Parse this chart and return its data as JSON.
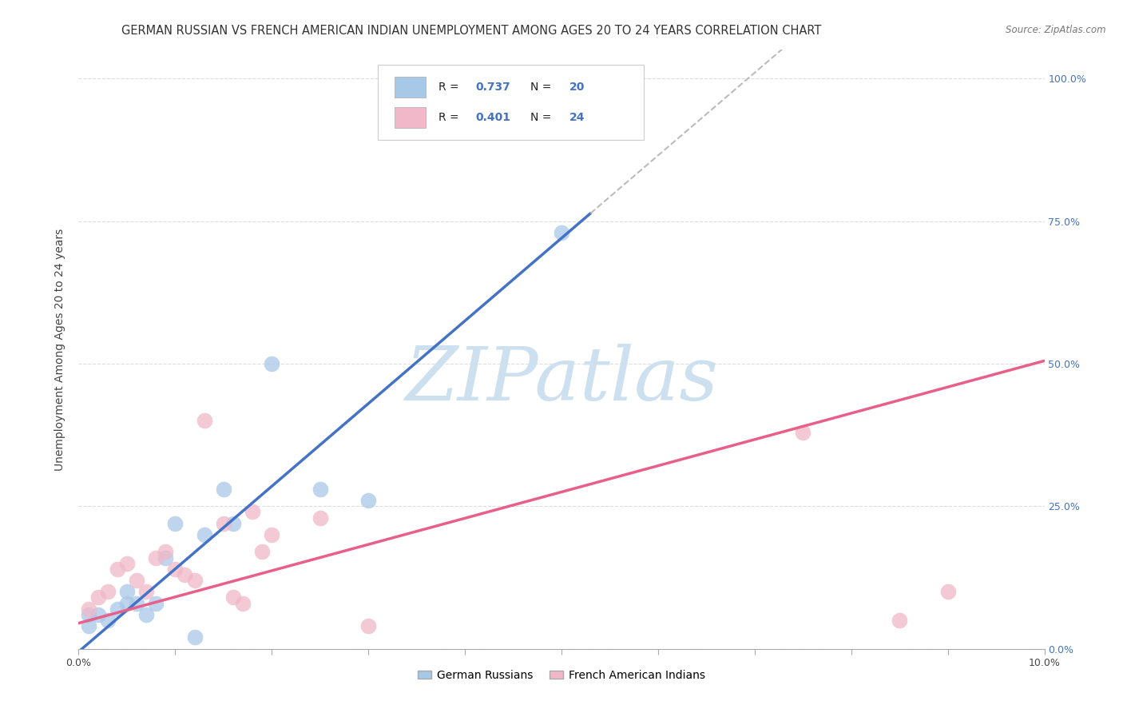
{
  "title": "GERMAN RUSSIAN VS FRENCH AMERICAN INDIAN UNEMPLOYMENT AMONG AGES 20 TO 24 YEARS CORRELATION CHART",
  "source": "Source: ZipAtlas.com",
  "ylabel": "Unemployment Among Ages 20 to 24 years",
  "xlim": [
    0.0,
    0.1
  ],
  "ylim": [
    0.0,
    1.05
  ],
  "xtick_positions": [
    0.0,
    0.01,
    0.02,
    0.03,
    0.04,
    0.05,
    0.06,
    0.07,
    0.08,
    0.09,
    0.1
  ],
  "xtick_labels": [
    "0.0%",
    "",
    "",
    "",
    "",
    "",
    "",
    "",
    "",
    "",
    "10.0%"
  ],
  "ytick_positions": [
    0.0,
    0.25,
    0.5,
    0.75,
    1.0
  ],
  "ytick_labels": [
    "0.0%",
    "25.0%",
    "50.0%",
    "75.0%",
    "100.0%"
  ],
  "german_russian_x": [
    0.001,
    0.001,
    0.002,
    0.003,
    0.004,
    0.005,
    0.005,
    0.006,
    0.007,
    0.008,
    0.009,
    0.01,
    0.012,
    0.013,
    0.015,
    0.016,
    0.02,
    0.025,
    0.03,
    0.05
  ],
  "german_russian_y": [
    0.04,
    0.06,
    0.06,
    0.05,
    0.07,
    0.08,
    0.1,
    0.08,
    0.06,
    0.08,
    0.16,
    0.22,
    0.02,
    0.2,
    0.28,
    0.22,
    0.5,
    0.28,
    0.26,
    0.73
  ],
  "french_ai_x": [
    0.001,
    0.002,
    0.003,
    0.004,
    0.005,
    0.006,
    0.007,
    0.008,
    0.009,
    0.01,
    0.011,
    0.012,
    0.013,
    0.015,
    0.016,
    0.017,
    0.018,
    0.019,
    0.02,
    0.025,
    0.03,
    0.075,
    0.085,
    0.09
  ],
  "french_ai_y": [
    0.07,
    0.09,
    0.1,
    0.14,
    0.15,
    0.12,
    0.1,
    0.16,
    0.17,
    0.14,
    0.13,
    0.12,
    0.4,
    0.22,
    0.09,
    0.08,
    0.24,
    0.17,
    0.2,
    0.23,
    0.04,
    0.38,
    0.05,
    0.1
  ],
  "german_russian_R": 0.737,
  "german_russian_N": 20,
  "french_ai_R": 0.401,
  "french_ai_N": 24,
  "blue_scatter_color": "#a8c8e8",
  "pink_scatter_color": "#f0b8c8",
  "regression_blue": "#4472c4",
  "regression_pink": "#e8608a",
  "dash_color": "#bbbbbb",
  "title_fontsize": 10.5,
  "axis_label_fontsize": 10,
  "tick_fontsize": 9,
  "watermark_text": "ZIPatlas",
  "watermark_color": "#cce0f0",
  "source_color": "#777777",
  "legend_label_blue": "German Russians",
  "legend_label_pink": "French American Indians",
  "blue_line_x_end": 0.053,
  "dash_line_x_end": 0.1,
  "pink_line_intercept": 0.045,
  "pink_line_slope": 4.6,
  "blue_line_intercept": -0.005,
  "blue_line_slope": 14.5
}
